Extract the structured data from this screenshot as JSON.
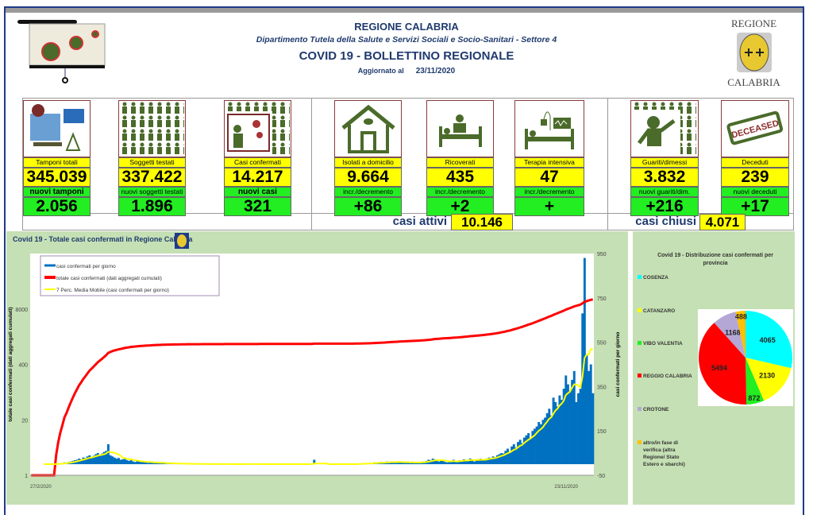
{
  "header": {
    "region": "REGIONE CALABRIA",
    "department": "Dipartimento Tutela della Salute e Servizi Sociali e Socio-Sanitari - Settore 4",
    "title": "COVID 19 - BOLLETTINO REGIONALE",
    "updated_label": "Aggiornato al",
    "updated_date": "23/11/2020",
    "logo_top": "REGIONE",
    "logo_bottom": "CALABRIA"
  },
  "cards": [
    {
      "label": "Tamponi totali",
      "value": "345.039",
      "sub_label": "nuovi tamponi",
      "sub_value": "2.056",
      "icon": "lab-equipment-icon"
    },
    {
      "label": "Soggetti testati",
      "value": "337.422",
      "sub_label": "nuovi soggetti testati",
      "sub_value": "1.896",
      "icon": "people-grid-icon"
    },
    {
      "label": "Casi confermati",
      "value": "14.217",
      "sub_label": "nuovi casi",
      "sub_value": "321",
      "icon": "infected-person-icon"
    },
    {
      "label": "Isolati a domicilio",
      "value": "9.664",
      "sub_label": "incr./decremento",
      "sub_value": "+86",
      "icon": "house-icon"
    },
    {
      "label": "Ricoverati",
      "value": "435",
      "sub_label": "incr./decremento",
      "sub_value": "+2",
      "icon": "hospital-bed-icon"
    },
    {
      "label": "Terapia intensiva",
      "value": "47",
      "sub_label": "incr./decremento",
      "sub_value": "+",
      "icon": "icu-bed-icon"
    },
    {
      "label": "Guariti/dimessi",
      "value": "3.832",
      "sub_label": "nuovi guariti/dim.",
      "sub_value": "+216",
      "icon": "recovered-person-icon"
    },
    {
      "label": "Deceduti",
      "value": "239",
      "sub_label": "nuovi deceduti",
      "sub_value": "+17",
      "icon": "deceased-stamp-icon"
    }
  ],
  "summary": {
    "active_label": "casi attivi",
    "active_value": "10.146",
    "closed_label": "casi chiusi",
    "closed_value": "4.071"
  },
  "stamp_text": "DECEASED",
  "colors": {
    "yellow": "#ffff00",
    "green": "#22ee22",
    "title": "#1f3a6e",
    "bars": "#0070c0",
    "cumulative": "#ff0000",
    "moving_avg": "#ffff00",
    "panel": "#c5e0b4"
  },
  "chart_data": [
    {
      "type": "bar+line",
      "title": "Covid 19 - Totale casi confermati in Regione Calabria",
      "legend": [
        "casi confermati per giorno",
        "totale casi confermati (dati aggregati cumulati)",
        "7 Perc. Media Mobile (casi confermati per giorno)"
      ],
      "legend_placement": "top-left",
      "ylabel_left": "totale casi confermati (dati aggregati cumulati)",
      "ylabel_right": "casi confermati per giorno",
      "yticks_left": [
        "1",
        "20",
        "400",
        "8000"
      ],
      "yscale_left": "log",
      "yticks_right": [
        "-50",
        "150",
        "350",
        "550",
        "750",
        "950"
      ],
      "ylim_right": [
        -50,
        950
      ],
      "x_start": "27/2/2020",
      "x_end": "23/11/2020",
      "daily": [
        0,
        0,
        0,
        0,
        0,
        0,
        0,
        0,
        0,
        0,
        0,
        1,
        2,
        3,
        4,
        5,
        8,
        6,
        10,
        12,
        15,
        18,
        20,
        25,
        22,
        30,
        28,
        35,
        40,
        32,
        38,
        45,
        50,
        42,
        48,
        55,
        60,
        90,
        40,
        35,
        30,
        25,
        28,
        20,
        22,
        30,
        18,
        15,
        20,
        12,
        10,
        14,
        12,
        9,
        10,
        8,
        6,
        8,
        12,
        5,
        6,
        4,
        5,
        7,
        4,
        3,
        5,
        2,
        3,
        2,
        4,
        1,
        2,
        3,
        1,
        2,
        1,
        1,
        0,
        2,
        1,
        0,
        1,
        2,
        1,
        0,
        0,
        1,
        1,
        0,
        1,
        0,
        0,
        1,
        0,
        0,
        1,
        0,
        0,
        0,
        1,
        0,
        0,
        2,
        0,
        0,
        1,
        0,
        0,
        0,
        1,
        0,
        0,
        0,
        0,
        1,
        0,
        0,
        0,
        0,
        1,
        0,
        0,
        0,
        0,
        0,
        1,
        0,
        0,
        0,
        0,
        0,
        1,
        0,
        0,
        0,
        20,
        0,
        0,
        0,
        0,
        0,
        0,
        1,
        0,
        0,
        0,
        0,
        0,
        0,
        0,
        0,
        0,
        0,
        0,
        0,
        2,
        3,
        1,
        4,
        2,
        5,
        3,
        6,
        4,
        8,
        5,
        7,
        10,
        6,
        8,
        12,
        9,
        11,
        7,
        10,
        8,
        12,
        9,
        6,
        10,
        8,
        5,
        7,
        9,
        6,
        8,
        10,
        12,
        8,
        15,
        20,
        18,
        25,
        22,
        15,
        12,
        18,
        14,
        10,
        8,
        12,
        15,
        20,
        10,
        12,
        18,
        15,
        22,
        20,
        16,
        25,
        18,
        12,
        20,
        22,
        25,
        20,
        22,
        25,
        30,
        28,
        35,
        32,
        40,
        45,
        50,
        48,
        60,
        70,
        55,
        80,
        90,
        75,
        100,
        110,
        95,
        120,
        130,
        140,
        115,
        150,
        160,
        170,
        190,
        180,
        200,
        210,
        230,
        250,
        220,
        300,
        280,
        260,
        310,
        290,
        340,
        400,
        360,
        330,
        380,
        420,
        280,
        320,
        340,
        680,
        930,
        490,
        420,
        450,
        320
      ]
    },
    {
      "type": "pie",
      "title": "Covid 19 - Distribuzione casi confermati per provincia",
      "labels": [
        "COSENZA",
        "CATANZARO",
        "VIBO VALENTIA",
        "REGGIO CALABRIA",
        "CROTONE",
        "altro/in fase di verifica (altra Regione/ Stato Estero e sbarchi)"
      ],
      "values": [
        4065,
        2130,
        872,
        5494,
        1168,
        488
      ],
      "colors": [
        "#00ffff",
        "#ffff00",
        "#22ee22",
        "#ff0000",
        "#b4a7d6",
        "#ffc000"
      ],
      "legend_placement": "left"
    }
  ]
}
